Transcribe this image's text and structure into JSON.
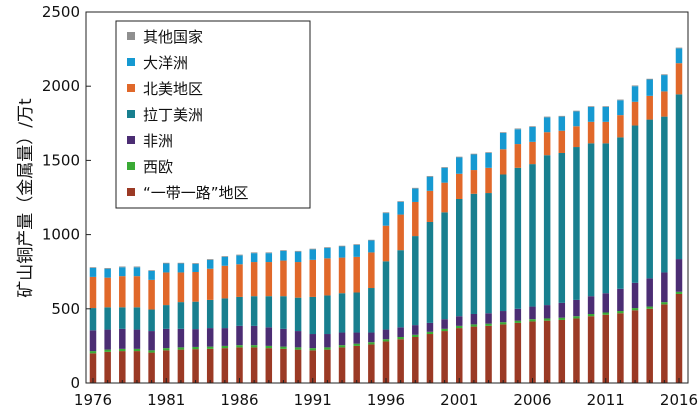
{
  "chart_data": {
    "type": "stacked-bar",
    "title": "",
    "xlabel": "",
    "ylabel": "矿山铜产量（金属量）/万t",
    "ylim": [
      0,
      2500
    ],
    "yticks": [
      0,
      500,
      1000,
      1500,
      2000,
      2500
    ],
    "yticklabels": [
      "0",
      "500",
      "1000",
      "1500",
      "2000",
      "2500"
    ],
    "xticklabels": [
      "1976",
      "1981",
      "1986",
      "1991",
      "1996",
      "2001",
      "2006",
      "2011",
      "2016"
    ],
    "legend_position": "top-left",
    "categories": [
      1976,
      1977,
      1978,
      1979,
      1980,
      1981,
      1982,
      1983,
      1984,
      1985,
      1986,
      1987,
      1988,
      1989,
      1990,
      1991,
      1992,
      1993,
      1994,
      1995,
      1996,
      1997,
      1998,
      1999,
      2000,
      2001,
      2002,
      2003,
      2004,
      2005,
      2006,
      2007,
      2008,
      2009,
      2010,
      2011,
      2012,
      2013,
      2014,
      2015,
      2016
    ],
    "series": [
      {
        "name": "“一带一路”地区",
        "color": "#9b3a25",
        "values": [
          200,
          210,
          215,
          215,
          205,
          220,
          225,
          228,
          230,
          235,
          240,
          240,
          235,
          230,
          225,
          220,
          225,
          240,
          250,
          260,
          280,
          295,
          310,
          330,
          350,
          370,
          380,
          385,
          395,
          405,
          415,
          420,
          425,
          435,
          450,
          460,
          470,
          490,
          500,
          530,
          600
        ]
      },
      {
        "name": "西欧",
        "color": "#3aaa35",
        "values": [
          15,
          15,
          15,
          15,
          15,
          15,
          15,
          15,
          15,
          15,
          15,
          15,
          15,
          15,
          15,
          15,
          15,
          15,
          15,
          15,
          15,
          15,
          15,
          15,
          15,
          15,
          15,
          15,
          15,
          15,
          15,
          15,
          15,
          15,
          15,
          15,
          15,
          15,
          15,
          15,
          15
        ]
      },
      {
        "name": "非洲",
        "color": "#4b2d73",
        "values": [
          140,
          135,
          135,
          130,
          130,
          130,
          125,
          120,
          125,
          120,
          130,
          130,
          125,
          120,
          110,
          95,
          90,
          85,
          75,
          65,
          65,
          65,
          65,
          60,
          65,
          65,
          70,
          70,
          75,
          80,
          85,
          90,
          100,
          110,
          120,
          130,
          150,
          170,
          190,
          200,
          220
        ]
      },
      {
        "name": "拉丁美洲",
        "color": "#187f8f",
        "values": [
          150,
          150,
          145,
          150,
          145,
          160,
          180,
          185,
          190,
          200,
          195,
          200,
          210,
          220,
          225,
          250,
          260,
          265,
          270,
          300,
          460,
          520,
          600,
          680,
          720,
          790,
          810,
          810,
          920,
          950,
          960,
          1010,
          1010,
          1030,
          1030,
          1010,
          1020,
          1060,
          1070,
          1050,
          1110
        ]
      },
      {
        "name": "北美地区",
        "color": "#e0682a",
        "values": [
          210,
          200,
          210,
          210,
          200,
          220,
          200,
          200,
          210,
          220,
          220,
          230,
          230,
          240,
          240,
          250,
          250,
          240,
          240,
          240,
          240,
          240,
          230,
          210,
          200,
          170,
          160,
          170,
          170,
          160,
          150,
          155,
          150,
          140,
          145,
          145,
          150,
          160,
          160,
          170,
          210
        ]
      },
      {
        "name": "大洋洲",
        "color": "#1699d1",
        "values": [
          60,
          60,
          60,
          60,
          60,
          60,
          60,
          55,
          60,
          60,
          60,
          60,
          60,
          65,
          70,
          70,
          70,
          75,
          80,
          80,
          85,
          85,
          90,
          95,
          100,
          110,
          105,
          100,
          110,
          100,
          100,
          100,
          95,
          100,
          100,
          100,
          100,
          105,
          110,
          110,
          100
        ]
      },
      {
        "name": "其他国家",
        "color": "#8f8f8f",
        "values": [
          5,
          5,
          5,
          5,
          5,
          5,
          5,
          5,
          5,
          5,
          5,
          5,
          5,
          5,
          5,
          5,
          5,
          5,
          5,
          5,
          5,
          5,
          5,
          5,
          5,
          5,
          5,
          5,
          5,
          5,
          5,
          5,
          5,
          5,
          5,
          5,
          5,
          5,
          5,
          5,
          5
        ]
      }
    ],
    "legend": [
      {
        "label": "其他国家",
        "color": "#8f8f8f"
      },
      {
        "label": "大洋洲",
        "color": "#1699d1"
      },
      {
        "label": "北美地区",
        "color": "#e0682a"
      },
      {
        "label": "拉丁美洲",
        "color": "#187f8f"
      },
      {
        "label": "非洲",
        "color": "#4b2d73"
      },
      {
        "label": "西欧",
        "color": "#3aaa35"
      },
      {
        "label": "“一带一路”地区",
        "color": "#9b3a25"
      }
    ]
  }
}
